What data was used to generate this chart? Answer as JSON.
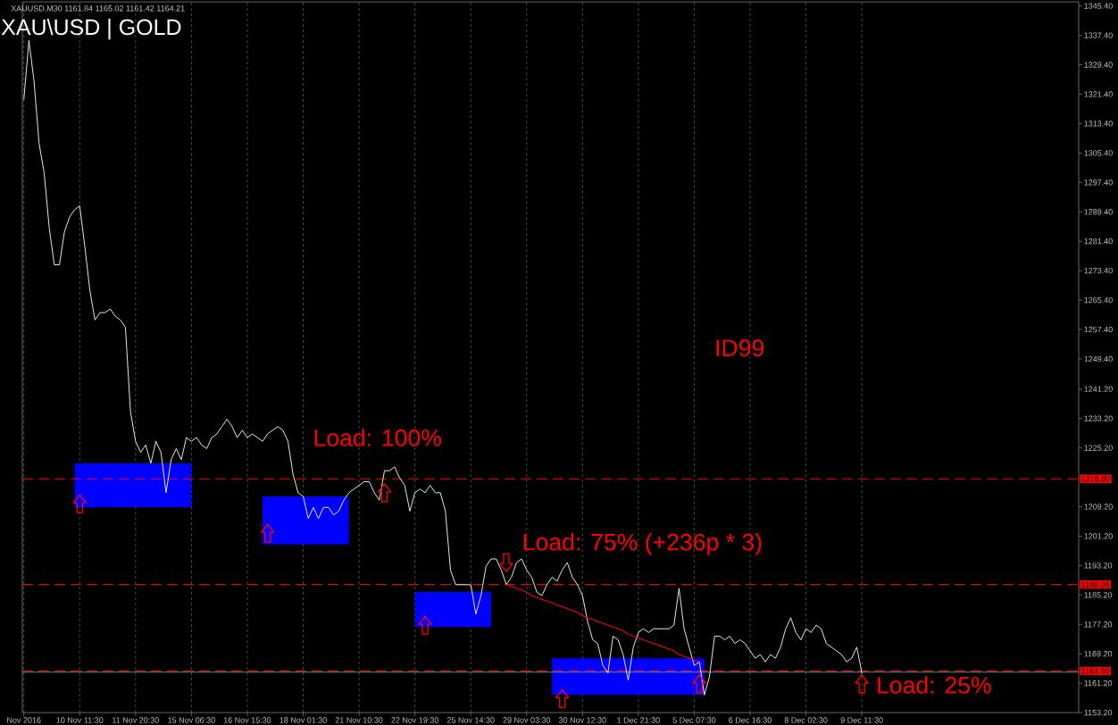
{
  "chart_data": {
    "type": "line",
    "title": "XAU\\USD | GOLD",
    "subtitle": "XAUUSD,M30 1161.84 1165.02 1161.42 1164.21",
    "categories": [
      "Nov 2016",
      null,
      null,
      null,
      null,
      null,
      null,
      null,
      null,
      null,
      null,
      "10 Nov 11:30",
      null,
      null,
      null,
      null,
      null,
      null,
      null,
      null,
      null,
      null,
      "11 Nov 20:30",
      null,
      null,
      null,
      null,
      null,
      null,
      null,
      null,
      null,
      null,
      "15 Nov 06:30",
      null,
      null,
      null,
      null,
      null,
      null,
      null,
      null,
      null,
      null,
      "16 Nov 15:30",
      null,
      null,
      null,
      null,
      null,
      null,
      null,
      null,
      null,
      null,
      "18 Nov 01:30",
      null,
      null,
      null,
      null,
      null,
      null,
      null,
      null,
      null,
      null,
      "21 Nov 10:30",
      null,
      null,
      null,
      null,
      null,
      null,
      null,
      null,
      null,
      null,
      "22 Nov 19:30",
      null,
      null,
      null,
      null,
      null,
      null,
      null,
      null,
      null,
      null,
      "25 Nov 14:30",
      null,
      null,
      null,
      null,
      null,
      null,
      null,
      null,
      null,
      null,
      "29 Nov 03:30",
      null,
      null,
      null,
      null,
      null,
      null,
      null,
      null,
      null,
      null,
      "30 Nov 12:30",
      null,
      null,
      null,
      null,
      null,
      null,
      null,
      null,
      null,
      null,
      "1 Dec 21:30",
      null,
      null,
      null,
      null,
      null,
      null,
      null,
      null,
      null,
      null,
      "5 Dec 07:30",
      null,
      null,
      null,
      null,
      null,
      null,
      null,
      null,
      null,
      null,
      "6 Dec 16:30",
      null,
      null,
      null,
      null,
      null,
      null,
      null,
      null,
      null,
      null,
      "8 Dec 02:30",
      null,
      null,
      null,
      null,
      null,
      null,
      null,
      null,
      null,
      null,
      "9 Dec 11:30",
      null,
      null,
      null,
      null,
      null,
      null,
      null,
      null,
      null,
      null,
      null,
      null,
      null,
      null,
      null,
      null,
      null,
      null,
      null,
      null,
      null,
      null,
      null,
      null,
      null,
      null,
      null,
      null,
      null,
      null,
      null,
      null,
      null,
      null,
      null,
      null,
      null,
      null,
      null,
      null,
      null,
      null
    ],
    "ylim": [
      1153.2,
      1346.5
    ],
    "yticks": [
      {
        "value": 1345.4,
        "label": "1345.40"
      },
      {
        "value": 1337.4,
        "label": "1337.40"
      },
      {
        "value": 1329.4,
        "label": "1329.40"
      },
      {
        "value": 1321.4,
        "label": "1321.40"
      },
      {
        "value": 1313.4,
        "label": "1313.40"
      },
      {
        "value": 1305.4,
        "label": "1305.40"
      },
      {
        "value": 1297.4,
        "label": "1297.40"
      },
      {
        "value": 1289.4,
        "label": "1289.40"
      },
      {
        "value": 1281.4,
        "label": "1281.40"
      },
      {
        "value": 1273.4,
        "label": "1273.40"
      },
      {
        "value": 1265.4,
        "label": "1265.40"
      },
      {
        "value": 1257.4,
        "label": "1257.40"
      },
      {
        "value": 1249.4,
        "label": "1249.40"
      },
      {
        "value": 1241.2,
        "label": "1241.20"
      },
      {
        "value": 1233.2,
        "label": "1233.20"
      },
      {
        "value": 1225.2,
        "label": "1225.20"
      },
      {
        "value": 1209.2,
        "label": "1209.20"
      },
      {
        "value": 1201.2,
        "label": "1201.20"
      },
      {
        "value": 1193.2,
        "label": "1193.20"
      },
      {
        "value": 1185.2,
        "label": "1185.20"
      },
      {
        "value": 1177.2,
        "label": "1177.20"
      },
      {
        "value": 1169.2,
        "label": "1169.20"
      },
      {
        "value": 1161.2,
        "label": "1161.20"
      },
      {
        "value": 1153.2,
        "label": "1153.20"
      }
    ],
    "grid": "x",
    "series": [
      {
        "type": "line",
        "color": "#0000ff",
        "values": [
          null,
          null,
          null,
          null,
          null,
          null,
          null,
          null,
          null,
          null,
          null,
          null,
          null,
          null,
          null,
          null,
          null,
          null,
          null,
          null,
          null,
          null,
          null,
          null,
          null,
          null,
          null,
          null,
          null,
          null,
          null,
          null,
          null,
          null,
          null,
          null,
          null,
          null,
          null,
          null,
          null,
          null,
          null,
          null,
          null,
          null,
          null,
          null,
          null,
          null,
          null,
          null,
          null,
          null,
          null,
          null,
          null,
          null,
          null,
          null,
          null,
          null,
          null,
          null,
          null,
          null,
          null,
          null,
          null,
          null,
          null,
          null,
          null,
          null,
          null,
          null,
          null,
          null,
          null,
          null,
          null,
          null,
          null,
          null,
          null,
          null,
          null,
          null,
          null,
          null,
          null,
          null,
          null,
          null,
          null,
          null,
          null,
          null,
          null,
          null,
          null,
          null,
          null,
          null,
          null,
          null,
          null,
          null,
          null,
          null,
          null,
          null,
          null,
          null,
          null,
          null,
          null,
          null,
          null,
          null,
          null,
          null,
          null,
          null,
          null,
          null,
          null,
          null,
          null,
          null,
          null,
          null,
          null,
          null,
          null,
          null,
          null,
          null,
          null,
          null,
          null,
          null,
          null,
          null,
          null,
          null,
          null,
          null,
          null,
          null,
          null,
          null,
          null,
          null,
          null,
          null,
          null,
          null,
          null,
          null,
          null,
          null,
          null,
          null,
          null,
          null,
          null,
          null,
          null,
          null,
          null,
          null,
          null,
          null,
          null,
          null,
          null,
          null,
          null,
          null,
          null,
          null,
          null,
          null,
          null,
          null,
          null,
          null,
          null,
          null,
          null,
          null,
          null,
          null,
          null,
          null,
          null,
          null,
          null,
          null,
          null,
          null,
          null,
          null,
          null,
          null,
          null,
          null
        ],
        "upper": [
          null,
          null,
          null,
          null,
          null,
          null,
          null,
          null,
          null,
          null,
          1221,
          1221,
          1221,
          1221,
          1221,
          1221,
          1221,
          1221,
          1221,
          1221,
          1221,
          1221,
          1221,
          1221,
          1221,
          1221,
          1221,
          1221,
          1221,
          1221,
          1221,
          1221,
          1221,
          1221,
          null,
          null,
          null,
          null,
          null,
          null,
          null,
          null,
          null,
          null,
          null,
          null,
          null,
          1212,
          1212,
          1212,
          1212,
          1212,
          1212,
          1212,
          1212,
          1212,
          1212,
          1212,
          1212,
          1212,
          1212,
          1212,
          1212,
          1212,
          1212,
          null,
          null,
          null,
          null,
          null,
          null,
          null,
          null,
          null,
          null,
          null,
          null,
          1186,
          1186,
          1186,
          1186,
          1186,
          1186,
          1186,
          1186,
          1186,
          1186,
          1186,
          1186,
          1186,
          1186,
          1186,
          1186,
          null,
          null,
          null,
          null,
          null,
          null,
          null,
          null,
          null,
          null,
          null,
          1168,
          1168,
          1168,
          1168,
          1168,
          1168,
          1168,
          1168,
          1168,
          1168,
          1168,
          1168,
          1168,
          1168,
          1168,
          1168,
          1168,
          1168,
          1168,
          1168,
          1168,
          1168,
          1168,
          1168,
          1168,
          1168,
          1168,
          1168,
          1168,
          1168,
          1168,
          null,
          null,
          null,
          null,
          null,
          null,
          null,
          null,
          null,
          null,
          null,
          null,
          null,
          null,
          null,
          null,
          null,
          null,
          null,
          null,
          null,
          null,
          null,
          null,
          null,
          null,
          null,
          null,
          null,
          null,
          null,
          null,
          null,
          null,
          null,
          null,
          null,
          null,
          null,
          null,
          null,
          null,
          null,
          null,
          null,
          null,
          null,
          null,
          null,
          null,
          null,
          null,
          null,
          null,
          null,
          null,
          null,
          null,
          null,
          null,
          null,
          null,
          null,
          null,
          null,
          null,
          null,
          null,
          null,
          null,
          null,
          null,
          null
        ],
        "lower": [
          null,
          null,
          null,
          null,
          null,
          null,
          null,
          null,
          null,
          null,
          1209,
          1209,
          1209,
          1209,
          1209,
          1209,
          1209,
          1209,
          1209,
          1209,
          1209,
          1209,
          1209,
          1209,
          1209,
          1209,
          1209,
          1209,
          1209,
          1209,
          1209,
          1209,
          1209,
          1209,
          null,
          null,
          null,
          null,
          null,
          null,
          null,
          null,
          null,
          null,
          null,
          null,
          null,
          1199,
          1199,
          1199,
          1199,
          1199,
          1199,
          1199,
          1199,
          1199,
          1199,
          1199,
          1199,
          1199,
          1199,
          1199,
          1199,
          1199,
          1199,
          null,
          null,
          null,
          null,
          null,
          null,
          null,
          null,
          null,
          null,
          null,
          null,
          1176.5,
          1176.5,
          1176.5,
          1176.5,
          1176.5,
          1176.5,
          1176.5,
          1176.5,
          1176.5,
          1176.5,
          1176.5,
          1176.5,
          1176.5,
          1176.5,
          1176.5,
          1176.5,
          null,
          null,
          null,
          null,
          null,
          null,
          null,
          null,
          null,
          null,
          null,
          1158,
          1158,
          1158,
          1158,
          1158,
          1158,
          1158,
          1158,
          1158,
          1158,
          1158,
          1158,
          1158,
          1158,
          1158,
          1158,
          1158,
          1158,
          1158,
          1158,
          1158,
          1158,
          1158,
          1158,
          1158,
          1158,
          1158,
          1158,
          1158,
          1158,
          1158,
          null,
          null,
          null,
          null,
          null,
          null,
          null,
          null,
          null,
          null,
          null,
          null,
          null,
          null,
          null,
          null,
          null,
          null,
          null,
          null,
          null,
          null,
          null,
          null,
          null,
          null,
          null,
          null,
          null,
          null,
          null,
          null,
          null,
          null,
          null,
          null,
          null,
          null,
          null,
          null,
          null,
          null,
          null,
          null,
          null,
          null,
          null,
          null,
          null,
          null,
          null,
          null,
          null,
          null,
          null,
          null,
          null,
          null,
          null,
          null,
          null,
          null,
          null,
          null,
          null,
          null,
          null,
          null,
          null,
          null,
          null,
          null,
          null
        ]
      },
      {
        "color": "#ffffff",
        "values": [
          1320,
          1336,
          1325,
          1308,
          1300,
          1285,
          1275,
          1275,
          1284,
          1288,
          1290,
          1291,
          1280,
          1268,
          1260,
          1262,
          1262,
          1263,
          1261,
          1260,
          1258,
          1235,
          1227,
          1224,
          1226,
          1221,
          1227,
          1224,
          1213,
          1222,
          1225,
          1222,
          1228,
          1227,
          1228,
          1226,
          1225,
          1228,
          1229,
          1231,
          1233,
          1231,
          1228,
          1230,
          1228,
          1229,
          1228,
          1227,
          1229,
          1230,
          1231,
          1230,
          1227,
          1218,
          1213,
          1212,
          1206,
          1209,
          1206,
          1209,
          1209,
          1207,
          1208,
          1211,
          1213,
          1214,
          1215,
          1216,
          1216,
          1213,
          1211,
          1219,
          1219,
          1220,
          1217,
          1215,
          1208,
          1213,
          1214,
          1213,
          1215,
          1213,
          1213,
          1208,
          1192,
          1188,
          1188,
          1188,
          1188,
          1180,
          1185,
          1193,
          1195,
          1195,
          1192,
          1188,
          1190,
          1194,
          1195,
          1192,
          1190,
          1186,
          1185,
          1188,
          1190,
          1189,
          1192,
          1194,
          1190,
          1188,
          1185,
          1178,
          1173,
          1172,
          1166,
          1164,
          1174,
          1173,
          1169,
          1162,
          1171,
          1175,
          1176,
          1175,
          1176,
          1176,
          1176,
          1176,
          1177,
          1187,
          1176,
          1171,
          1166,
          1167,
          1158,
          1163,
          1174,
          1174,
          1173,
          1174,
          1172,
          1173,
          1172,
          1170,
          1168,
          1169,
          1167,
          1169,
          1168,
          1171,
          1176,
          1179,
          1175,
          1173,
          1176,
          1175,
          1177,
          1176,
          1172,
          1171,
          1170,
          1169,
          1167,
          1168,
          1171,
          1164,
          null,
          null,
          null,
          null,
          null,
          null,
          null,
          null,
          null,
          null,
          null,
          null,
          null,
          null,
          null,
          null,
          null,
          null,
          null,
          null,
          null,
          null,
          null,
          null,
          null,
          null,
          null,
          null,
          null,
          null,
          null,
          null,
          null,
          null,
          null,
          null,
          null,
          null,
          null,
          null,
          null,
          null
        ]
      },
      {
        "type": "line",
        "color": "#ff0000",
        "line_style": "dotted",
        "values": [
          null,
          null,
          null,
          null,
          null,
          null,
          null,
          null,
          null,
          null,
          null,
          null,
          null,
          null,
          null,
          null,
          null,
          null,
          null,
          null,
          null,
          null,
          null,
          null,
          null,
          null,
          null,
          null,
          null,
          null,
          null,
          null,
          null,
          null,
          null,
          null,
          null,
          null,
          null,
          null,
          null,
          null,
          null,
          null,
          null,
          null,
          null,
          null,
          null,
          null,
          null,
          null,
          null,
          null,
          null,
          null,
          null,
          null,
          null,
          null,
          null,
          null,
          null,
          null,
          null,
          null,
          null,
          null,
          null,
          null,
          null,
          null,
          null,
          null,
          null,
          null,
          null,
          null,
          null,
          null,
          null,
          null,
          null,
          null,
          null,
          null,
          null,
          null,
          null,
          null,
          null,
          null,
          null,
          null,
          null,
          1188,
          1187.5,
          1187,
          1186.5,
          1186,
          1185,
          1184.5,
          1184,
          1183.5,
          1183,
          1182.5,
          1182,
          1181.5,
          1181,
          1180.5,
          1179.5,
          1179,
          1178.5,
          1178,
          1177.5,
          1177,
          1176.5,
          1176,
          1175.5,
          1174.5,
          1174,
          1173.5,
          1173,
          1172.5,
          1172,
          1171.5,
          1171,
          1170.5,
          1170,
          1169,
          1168.5,
          1168,
          1167.5,
          1167,
          null,
          null,
          null,
          null,
          null,
          null,
          null,
          null,
          null,
          null,
          null,
          null,
          null,
          null,
          null,
          null,
          null,
          null,
          null,
          null,
          null,
          null,
          null,
          null,
          null,
          null,
          null,
          null,
          null,
          null,
          null,
          null,
          null,
          null,
          null,
          null,
          null,
          null,
          null,
          null,
          null,
          null,
          null,
          null,
          null,
          null,
          null,
          null,
          null,
          null,
          null,
          null,
          null,
          null,
          null,
          null,
          null,
          null,
          null,
          null,
          null,
          null,
          null,
          null,
          null,
          null,
          null,
          null,
          null,
          null,
          null,
          null,
          null,
          null
        ]
      },
      {
        "type": "scatter",
        "color": "#ff0000",
        "marker": "triangle",
        "values": [
          null,
          null,
          null,
          null,
          null,
          null,
          null,
          null,
          null,
          null,
          null,
          1210,
          null,
          null,
          null,
          null,
          null,
          null,
          null,
          null,
          null,
          null,
          null,
          null,
          null,
          null,
          null,
          null,
          null,
          null,
          null,
          null,
          null,
          null,
          null,
          null,
          null,
          null,
          null,
          null,
          null,
          null,
          null,
          null,
          null,
          null,
          null,
          null,
          1202,
          null,
          null,
          null,
          null,
          null,
          null,
          null,
          null,
          null,
          null,
          null,
          null,
          null,
          null,
          null,
          null,
          null,
          null,
          null,
          null,
          null,
          null,
          1213,
          null,
          null,
          null,
          null,
          null,
          null,
          null,
          1177,
          null,
          null,
          null,
          null,
          null,
          null,
          null,
          null,
          null,
          null,
          null,
          null,
          null,
          null,
          null,
          null,
          null,
          null,
          null,
          null,
          null,
          null,
          null,
          null,
          null,
          null,
          1157,
          null,
          null,
          null,
          null,
          null,
          null,
          null,
          null,
          null,
          null,
          null,
          null,
          null,
          null,
          null,
          null,
          null,
          null,
          null,
          null,
          null,
          null,
          null,
          null,
          null,
          null,
          1161,
          null,
          null,
          null,
          null,
          null,
          null,
          null,
          null,
          null,
          null,
          null,
          null,
          null,
          null,
          null,
          null,
          null,
          null,
          null,
          null,
          null,
          null,
          null,
          null,
          null,
          null,
          null,
          null,
          null,
          null,
          null,
          1161,
          null,
          null,
          null,
          null,
          null,
          null,
          null,
          null,
          null,
          null,
          null,
          null,
          null,
          null,
          null,
          null,
          null,
          null,
          null,
          null,
          null,
          null,
          null,
          null,
          null,
          null,
          null,
          null,
          null,
          null,
          null,
          null,
          null,
          null,
          null,
          null,
          null,
          null,
          null,
          null,
          null,
          null
        ]
      },
      {
        "type": "scatter",
        "color": "#ff0000",
        "marker": "triangle",
        "values": [
          null,
          null,
          null,
          null,
          null,
          null,
          null,
          null,
          null,
          null,
          null,
          null,
          null,
          null,
          null,
          null,
          null,
          null,
          null,
          null,
          null,
          null,
          null,
          null,
          null,
          null,
          null,
          null,
          null,
          null,
          null,
          null,
          null,
          null,
          null,
          null,
          null,
          null,
          null,
          null,
          null,
          null,
          null,
          null,
          null,
          null,
          null,
          null,
          null,
          null,
          null,
          null,
          null,
          null,
          null,
          null,
          null,
          null,
          null,
          null,
          null,
          null,
          null,
          null,
          null,
          null,
          null,
          null,
          null,
          null,
          null,
          null,
          null,
          null,
          null,
          null,
          null,
          null,
          null,
          null,
          null,
          null,
          null,
          null,
          null,
          null,
          null,
          null,
          null,
          null,
          null,
          null,
          null,
          null,
          null,
          1194,
          null,
          null,
          null,
          null,
          null,
          null,
          null,
          null,
          null,
          null,
          null,
          null,
          null,
          null,
          null,
          null,
          null,
          null,
          null,
          null,
          null,
          null,
          null,
          null,
          null,
          null,
          null,
          null,
          null,
          null,
          null,
          null,
          null,
          null,
          null,
          null,
          null,
          null,
          null,
          null,
          null,
          null,
          null,
          null,
          null,
          null,
          null,
          null,
          null,
          null,
          null,
          null,
          null,
          null,
          null,
          null,
          null,
          null,
          null,
          null,
          null,
          null,
          null,
          null,
          null,
          null,
          null,
          null,
          null,
          null,
          null,
          null,
          null,
          null,
          null,
          null,
          null,
          null,
          null,
          null,
          null,
          null,
          null,
          null,
          null,
          null,
          null,
          null,
          null,
          null,
          null,
          null,
          null,
          null,
          null,
          null,
          null,
          null,
          null,
          null,
          null,
          null,
          null,
          null,
          null,
          null,
          null,
          null,
          null,
          null,
          null,
          null
        ]
      }
    ],
    "ref_lines": [
      {
        "axis": "y",
        "value": 1216.8,
        "label": "1216.80",
        "color": "#ff0000",
        "line_style": "dashed"
      },
      {
        "axis": "y",
        "value": 1188.06,
        "label": "1188.06",
        "color": "#ff0000",
        "line_style": "dashed"
      },
      {
        "axis": "y",
        "value": 1164.5,
        "label": "1164.50",
        "color": "#ff0000",
        "line_style": "dashed"
      },
      {
        "axis": "y",
        "value": 1164.21,
        "color": "#808080",
        "line_style": "solid"
      }
    ],
    "annotations": [
      "Load: 100%",
      "Load: 75% (+236p * 3)",
      "Load: 25%",
      "ID99"
    ]
  }
}
